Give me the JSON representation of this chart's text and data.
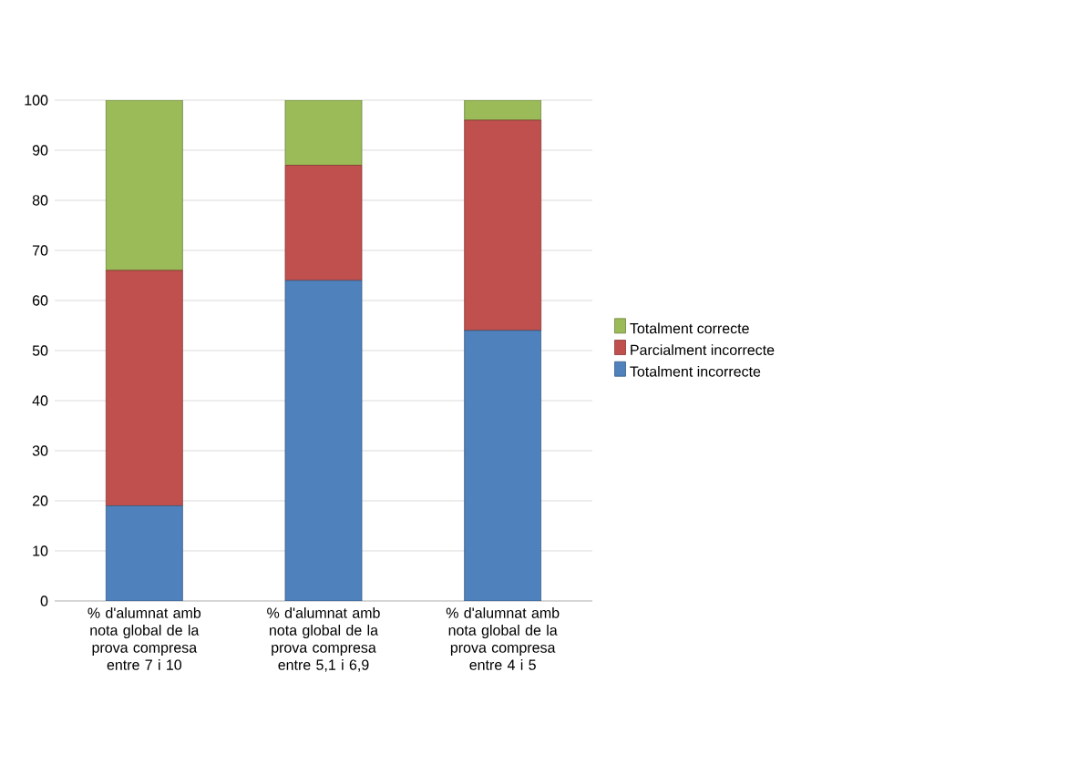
{
  "chart_data": {
    "type": "bar",
    "stacked": true,
    "categories": [
      "% d'alumnat amb nota global de la prova compresa entre 7 i 10",
      "% d'alumnat amb nota global de la prova compresa entre 5,1 i 6,9",
      "% d'alumnat amb nota global de la prova compresa entre 4 i 5"
    ],
    "series": [
      {
        "name": "Totalment incorrecte",
        "color": "#4f81bd",
        "values": [
          19,
          64,
          54
        ]
      },
      {
        "name": "Parcialment incorrecte",
        "color": "#c0504d",
        "values": [
          47,
          23,
          42
        ]
      },
      {
        "name": "Totalment correcte",
        "color": "#9bbb59",
        "values": [
          34,
          13,
          4
        ]
      }
    ],
    "ylim": [
      0,
      100
    ],
    "yticks": [
      0,
      10,
      20,
      30,
      40,
      50,
      60,
      70,
      80,
      90,
      100
    ],
    "grid": "y",
    "legend": "right"
  }
}
